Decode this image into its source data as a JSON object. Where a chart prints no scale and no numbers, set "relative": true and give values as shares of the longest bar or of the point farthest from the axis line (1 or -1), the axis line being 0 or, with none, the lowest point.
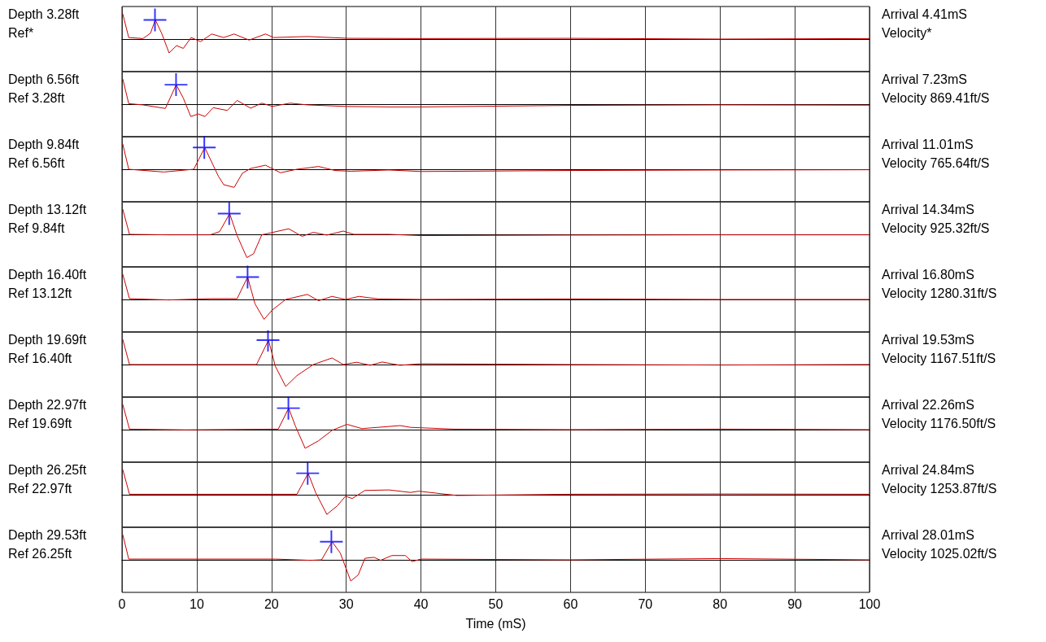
{
  "chart_data": [
    {
      "type": "line",
      "relative": true,
      "xlim": [
        0,
        100
      ],
      "xticks": [
        0,
        10,
        20,
        30,
        40,
        50,
        60,
        70,
        80,
        90,
        100
      ],
      "tick_labels": false,
      "grid": "x",
      "annotations": [
        "Depth 3.28ft",
        "Ref*",
        "Arrival 4.41mS",
        "Velocity*"
      ],
      "series": [
        {
          "color": "#cc0000",
          "marker": "none",
          "x": [
            0.1,
            0.9,
            2.8,
            3.8,
            4.46,
            5.3,
            6.3,
            7.3,
            8.2,
            9.25,
            10.5,
            12.0,
            13.6,
            15.0,
            17.0,
            19.2,
            20.3,
            24.8,
            30.3,
            40,
            60,
            80,
            100
          ],
          "values": [
            1.0,
            0.06,
            0.02,
            0.23,
            0.76,
            0.23,
            -0.55,
            -0.26,
            -0.37,
            0.06,
            -0.1,
            0.2,
            0.06,
            0.2,
            -0.04,
            0.2,
            0.06,
            0.1,
            0.03,
            0.02,
            0.03,
            0.0,
            0.02
          ]
        },
        {
          "type": "scatter",
          "color": "#0000ff",
          "marker": "cross",
          "x": [
            4.41
          ],
          "values": [
            0.76
          ]
        }
      ]
    },
    {
      "type": "line",
      "relative": true,
      "xlim": [
        0,
        100
      ],
      "xticks": [
        0,
        10,
        20,
        30,
        40,
        50,
        60,
        70,
        80,
        90,
        100
      ],
      "tick_labels": false,
      "grid": "x",
      "annotations": [
        "Depth 6.56ft",
        "Ref 3.28ft",
        "Arrival 7.23mS",
        "Velocity 869.41ft/S"
      ],
      "series": [
        {
          "color": "#cc0000",
          "marker": "none",
          "x": [
            0.1,
            0.9,
            2.8,
            5.8,
            7.25,
            8.2,
            9.2,
            10.2,
            11.1,
            12.2,
            14.1,
            15.4,
            17.2,
            18.7,
            20.1,
            22.5,
            24.8,
            29.9,
            35.7,
            40,
            60,
            80,
            100
          ],
          "values": [
            1.0,
            0.02,
            -0.03,
            -0.17,
            0.77,
            0.24,
            -0.49,
            -0.39,
            -0.49,
            -0.14,
            -0.25,
            0.15,
            -0.16,
            0.04,
            -0.09,
            0.04,
            -0.03,
            -0.09,
            -0.11,
            -0.11,
            -0.05,
            -0.03,
            -0.04
          ]
        },
        {
          "type": "scatter",
          "color": "#0000ff",
          "marker": "cross",
          "x": [
            7.23
          ],
          "values": [
            0.77
          ]
        }
      ]
    },
    {
      "type": "line",
      "relative": true,
      "xlim": [
        0,
        100
      ],
      "xticks": [
        0,
        10,
        20,
        30,
        40,
        50,
        60,
        70,
        80,
        90,
        100
      ],
      "tick_labels": false,
      "grid": "x",
      "annotations": [
        "Depth 9.84ft",
        "Ref 6.56ft",
        "Arrival 11.01mS",
        "Velocity 765.64ft/S"
      ],
      "series": [
        {
          "color": "#cc0000",
          "marker": "none",
          "x": [
            0.1,
            0.9,
            5.6,
            9.6,
            11.07,
            12.9,
            13.6,
            15.0,
            16.1,
            17.2,
            19.2,
            21.2,
            23.4,
            26.3,
            28.5,
            30.6,
            35.7,
            40,
            60,
            80,
            100
          ],
          "values": [
            1.0,
            0.0,
            -0.11,
            0.0,
            0.86,
            -0.28,
            -0.61,
            -0.72,
            -0.16,
            0.03,
            0.16,
            -0.14,
            0.0,
            0.11,
            -0.05,
            -0.08,
            -0.03,
            -0.09,
            -0.05,
            -0.03,
            -0.02
          ]
        },
        {
          "type": "scatter",
          "color": "#0000ff",
          "marker": "cross",
          "x": [
            11.01
          ],
          "values": [
            0.86
          ]
        }
      ]
    },
    {
      "type": "line",
      "relative": true,
      "xlim": [
        0,
        100
      ],
      "xticks": [
        0,
        10,
        20,
        30,
        40,
        50,
        60,
        70,
        80,
        90,
        100
      ],
      "tick_labels": false,
      "grid": "x",
      "annotations": [
        "Depth 13.12ft",
        "Ref 9.84ft",
        "Arrival 14.34mS",
        "Velocity 925.32ft/S"
      ],
      "series": [
        {
          "color": "#cc0000",
          "marker": "none",
          "x": [
            0.1,
            1.0,
            6.3,
            11.8,
            13.06,
            14.4,
            15.4,
            16.7,
            17.6,
            18.7,
            22.3,
            24.1,
            25.6,
            27.4,
            29.6,
            31.0,
            35.7,
            40,
            60,
            80,
            100
          ],
          "values": [
            1.0,
            0.0,
            -0.02,
            -0.02,
            0.11,
            0.82,
            -0.05,
            -0.92,
            -0.77,
            -0.02,
            0.22,
            -0.08,
            0.08,
            -0.03,
            0.13,
            0.0,
            0.0,
            -0.05,
            -0.03,
            -0.02,
            -0.02
          ]
        },
        {
          "type": "scatter",
          "color": "#0000ff",
          "marker": "cross",
          "x": [
            14.34
          ],
          "values": [
            0.82
          ]
        }
      ]
    },
    {
      "type": "line",
      "relative": true,
      "xlim": [
        0,
        100
      ],
      "xticks": [
        0,
        10,
        20,
        30,
        40,
        50,
        60,
        70,
        80,
        90,
        100
      ],
      "tick_labels": false,
      "grid": "x",
      "annotations": [
        "Depth 16.40ft",
        "Ref 13.12ft",
        "Arrival 16.80mS",
        "Velocity 1280.31ft/S"
      ],
      "series": [
        {
          "color": "#cc0000",
          "marker": "none",
          "x": [
            0.1,
            1.0,
            6.3,
            11.9,
            15.4,
            16.8,
            17.8,
            19.0,
            20.1,
            21.9,
            24.8,
            26.3,
            28.1,
            29.9,
            31.7,
            34.3,
            40,
            60,
            80,
            100
          ],
          "values": [
            1.0,
            0.03,
            -0.02,
            0.03,
            0.03,
            0.89,
            -0.18,
            -0.79,
            -0.42,
            0.0,
            0.2,
            -0.05,
            0.12,
            0.0,
            0.12,
            0.02,
            0.0,
            0.02,
            0.0,
            0.0
          ]
        },
        {
          "type": "scatter",
          "color": "#0000ff",
          "marker": "cross",
          "x": [
            16.8
          ],
          "values": [
            0.89
          ]
        }
      ]
    },
    {
      "type": "line",
      "relative": true,
      "xlim": [
        0,
        100
      ],
      "xticks": [
        0,
        10,
        20,
        30,
        40,
        50,
        60,
        70,
        80,
        90,
        100
      ],
      "tick_labels": false,
      "grid": "x",
      "annotations": [
        "Depth 19.69ft",
        "Ref 16.40ft",
        "Arrival 19.53mS",
        "Velocity 1167.51ft/S"
      ],
      "series": [
        {
          "color": "#cc0000",
          "marker": "none",
          "x": [
            0.1,
            1.0,
            6.3,
            18.0,
            19.6,
            20.5,
            21.9,
            23.4,
            25.6,
            28.1,
            29.6,
            31.4,
            33.2,
            34.8,
            37.2,
            40,
            60,
            80,
            100
          ],
          "values": [
            1.0,
            0.0,
            0.0,
            0.0,
            0.97,
            -0.06,
            -0.87,
            -0.44,
            0.0,
            0.26,
            0.0,
            0.09,
            -0.03,
            0.1,
            -0.03,
            0.03,
            0.0,
            -0.02,
            0.0
          ]
        },
        {
          "type": "scatter",
          "color": "#0000ff",
          "marker": "cross",
          "x": [
            19.53
          ],
          "values": [
            0.97
          ]
        }
      ]
    },
    {
      "type": "line",
      "relative": true,
      "xlim": [
        0,
        100
      ],
      "xticks": [
        0,
        10,
        20,
        30,
        40,
        50,
        60,
        70,
        80,
        90,
        100
      ],
      "tick_labels": false,
      "grid": "x",
      "annotations": [
        "Depth 22.97ft",
        "Ref 19.69ft",
        "Arrival 22.26mS",
        "Velocity 1176.50ft/S"
      ],
      "series": [
        {
          "color": "#cc0000",
          "marker": "none",
          "x": [
            0.1,
            1.0,
            8.5,
            20.9,
            22.3,
            23.2,
            24.5,
            26.3,
            28.1,
            30.1,
            32.1,
            37.2,
            38.6,
            44.4,
            60,
            80,
            100
          ],
          "values": [
            1.0,
            0.02,
            -0.01,
            0.02,
            0.85,
            0.14,
            -0.74,
            -0.44,
            -0.03,
            0.21,
            0.04,
            0.16,
            0.09,
            0.02,
            0.0,
            0.02,
            0.0
          ]
        },
        {
          "type": "scatter",
          "color": "#0000ff",
          "marker": "cross",
          "x": [
            22.26
          ],
          "values": [
            0.85
          ]
        }
      ]
    },
    {
      "type": "line",
      "relative": true,
      "xlim": [
        0,
        100
      ],
      "xticks": [
        0,
        10,
        20,
        30,
        40,
        50,
        60,
        70,
        80,
        90,
        100
      ],
      "tick_labels": false,
      "grid": "x",
      "annotations": [
        "Depth 26.25ft",
        "Ref 22.97ft",
        "Arrival 24.84mS",
        "Velocity 1253.87ft/S"
      ],
      "series": [
        {
          "color": "#cc0000",
          "marker": "none",
          "x": [
            0.1,
            1.0,
            23.4,
            24.9,
            25.9,
            27.4,
            28.8,
            29.9,
            30.8,
            32.5,
            35.7,
            38.6,
            39.7,
            44.8,
            60,
            80,
            100
          ],
          "values": [
            1.0,
            0.02,
            0.02,
            0.85,
            0.09,
            -0.78,
            -0.44,
            -0.06,
            -0.15,
            0.17,
            0.19,
            0.09,
            0.14,
            -0.03,
            0.02,
            0.03,
            0.02
          ]
        },
        {
          "type": "scatter",
          "color": "#0000ff",
          "marker": "cross",
          "x": [
            24.84
          ],
          "values": [
            0.85
          ]
        }
      ]
    },
    {
      "type": "line",
      "relative": true,
      "xlim": [
        0,
        100
      ],
      "xticks": [
        0,
        10,
        20,
        30,
        40,
        50,
        60,
        70,
        80,
        90,
        100
      ],
      "tick_labels": "x",
      "grid": "x",
      "xlabel": "Time (mS)",
      "annotations": [
        "Depth 29.53ft",
        "Ref 26.25ft",
        "Arrival 28.01mS",
        "Velocity 1025.02ft/S"
      ],
      "series": [
        {
          "color": "#cc0000",
          "marker": "none",
          "x": [
            0.1,
            0.9,
            20.5,
            25.2,
            26.7,
            28.1,
            29.2,
            30.6,
            31.6,
            32.5,
            33.7,
            34.6,
            36.1,
            37.9,
            38.8,
            40,
            60,
            80,
            100
          ],
          "values": [
            1.0,
            0.03,
            0.03,
            -0.02,
            0.0,
            0.72,
            0.27,
            -0.84,
            -0.6,
            0.06,
            0.1,
            -0.02,
            0.17,
            0.17,
            -0.07,
            0.03,
            0.0,
            0.05,
            0.0
          ]
        },
        {
          "type": "scatter",
          "color": "#0000ff",
          "marker": "cross",
          "x": [
            28.01
          ],
          "values": [
            0.72
          ]
        }
      ]
    }
  ]
}
